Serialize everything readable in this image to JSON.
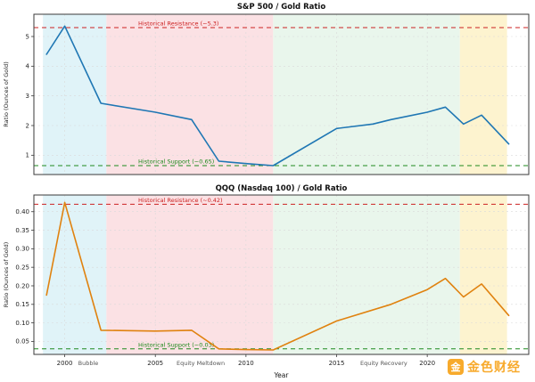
{
  "watermark": {
    "icon_text": "金",
    "label": "金色财经",
    "color": "#f7a31b"
  },
  "shared_axis": {
    "xlabel": "Year",
    "xlim": [
      1998.3,
      2025.6
    ],
    "x_ticks": [
      2000,
      2005,
      2010,
      2015,
      2020
    ],
    "bands": [
      {
        "from": 1998.8,
        "to": 2002.3,
        "color": "#e0f3f8",
        "name": "bubble-era"
      },
      {
        "from": 2002.3,
        "to": 2011.5,
        "color": "#fbe1e4",
        "name": "meltdown-era"
      },
      {
        "from": 2011.5,
        "to": 2021.8,
        "color": "#e9f6ec",
        "name": "recovery-era"
      },
      {
        "from": 2021.8,
        "to": 2024.4,
        "color": "#fdf3cf",
        "name": "recent-era"
      }
    ],
    "annotations": [
      {
        "x": 2001.3,
        "label": "Bubble"
      },
      {
        "x": 2007.5,
        "label": "Equity Meltdown"
      },
      {
        "x": 2017.6,
        "label": "Equity Recovery"
      }
    ]
  },
  "chart_data": [
    {
      "type": "line",
      "title": "S&P 500 / Gold Ratio",
      "ylabel": "Ratio (Ounces of Gold)",
      "line_color": "#1f77b4",
      "ylim": [
        0.35,
        5.75
      ],
      "y_ticks": [
        1,
        2,
        3,
        4,
        5
      ],
      "x": [
        1999,
        2000,
        2002,
        2005,
        2007,
        2008.5,
        2010,
        2011.5,
        2015,
        2017,
        2018,
        2020,
        2021,
        2022,
        2023,
        2024.5
      ],
      "values": [
        4.4,
        5.35,
        2.75,
        2.45,
        2.2,
        0.8,
        0.72,
        0.65,
        1.9,
        2.05,
        2.2,
        2.45,
        2.62,
        2.05,
        2.35,
        1.38
      ],
      "resistance": {
        "value": 5.3,
        "label": "Historical Resistance (~5.3)",
        "color": "#cc2222"
      },
      "support": {
        "value": 0.65,
        "label": "Historical Support (~0.65)",
        "color": "#1e8a1e"
      }
    },
    {
      "type": "line",
      "title": "QQQ (Nasdaq 100) / Gold Ratio",
      "ylabel": "Ratio (Ounces of Gold)",
      "line_color": "#e0820f",
      "ylim": [
        0.015,
        0.445
      ],
      "y_ticks": [
        0.05,
        0.1,
        0.15,
        0.2,
        0.25,
        0.3,
        0.35,
        0.4
      ],
      "y_tick_decimals": 2,
      "x": [
        1999,
        2000,
        2002,
        2005,
        2007,
        2008.5,
        2010,
        2011.5,
        2015,
        2018,
        2020,
        2021,
        2022,
        2023,
        2024.5
      ],
      "values": [
        0.175,
        0.425,
        0.08,
        0.078,
        0.08,
        0.03,
        0.028,
        0.027,
        0.105,
        0.15,
        0.19,
        0.22,
        0.17,
        0.205,
        0.12
      ],
      "resistance": {
        "value": 0.42,
        "label": "Historical Resistance (~0.42)",
        "color": "#cc2222"
      },
      "support": {
        "value": 0.03,
        "label": "Historical Support (~0.03)",
        "color": "#1e8a1e"
      }
    }
  ]
}
